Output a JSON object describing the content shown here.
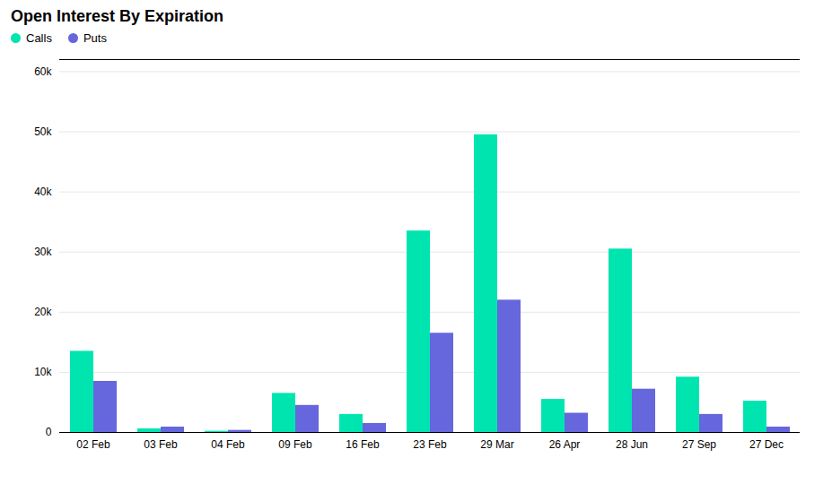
{
  "chart_data": {
    "type": "bar",
    "title": "Open Interest By Expiration",
    "categories": [
      "02 Feb",
      "03 Feb",
      "04 Feb",
      "09 Feb",
      "16 Feb",
      "23 Feb",
      "29 Mar",
      "26 Apr",
      "28 Jun",
      "27 Sep",
      "27 Dec"
    ],
    "series": [
      {
        "name": "Calls",
        "color": "#00e5b0",
        "values": [
          13500,
          600,
          200,
          6500,
          3000,
          33500,
          49500,
          5500,
          30500,
          9200,
          5200
        ]
      },
      {
        "name": "Puts",
        "color": "#6666dd",
        "values": [
          8500,
          900,
          350,
          4500,
          1500,
          16500,
          22000,
          3200,
          7200,
          3000,
          900
        ]
      }
    ],
    "ylim": [
      0,
      62000
    ],
    "yticks": [
      0,
      {
        "value": 10000,
        "label": "10k"
      },
      {
        "value": 20000,
        "label": "20k"
      },
      {
        "value": 30000,
        "label": "30k"
      },
      {
        "value": 40000,
        "label": "40k"
      },
      {
        "value": 50000,
        "label": "50k"
      },
      {
        "value": 60000,
        "label": "60k"
      }
    ],
    "grid": true,
    "legend": "upper left"
  }
}
